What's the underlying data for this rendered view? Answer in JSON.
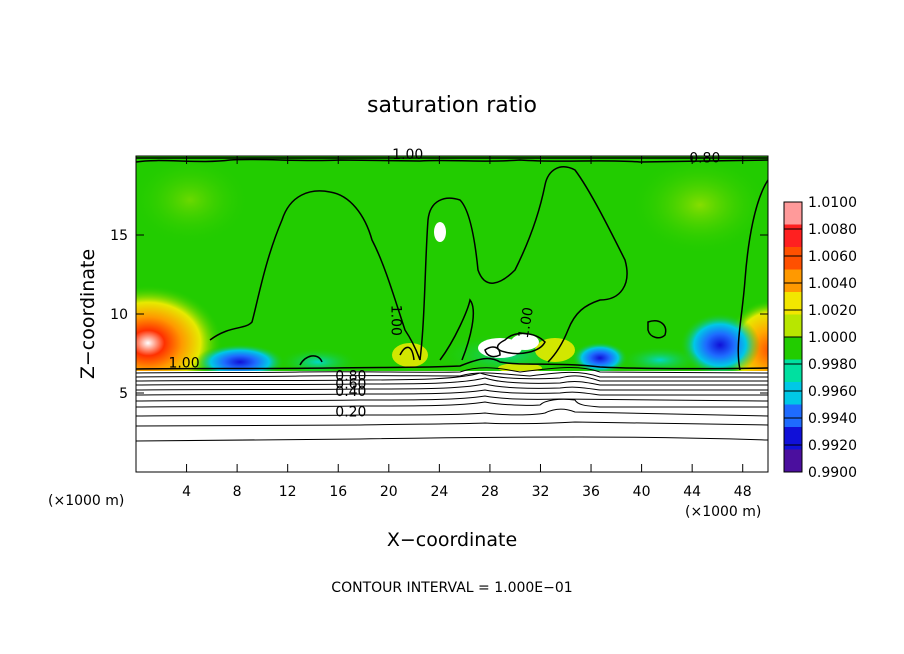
{
  "chart_data": {
    "type": "heatmap",
    "title": "saturation ratio",
    "xlabel": "X−coordinate",
    "ylabel": "Z−coordinate",
    "x_unit_left": "(×1000 m)",
    "x_unit_right": "(×1000 m)",
    "xlim": [
      0,
      50
    ],
    "ylim": [
      0,
      20
    ],
    "x_ticks": [
      4,
      8,
      12,
      16,
      20,
      24,
      28,
      32,
      36,
      40,
      44,
      48
    ],
    "y_ticks": [
      5,
      10,
      15
    ],
    "colorbar": {
      "labels": [
        "1.0100",
        "1.0080",
        "1.0060",
        "1.0040",
        "1.0020",
        "1.0000",
        "0.9980",
        "0.9960",
        "0.9940",
        "0.9920",
        "0.9900"
      ],
      "colors": [
        "#ff9a9a",
        "#ff2020",
        "#ff5000",
        "#ff9900",
        "#f2e600",
        "#b8e600",
        "#22cc00",
        "#00e0a0",
        "#00c8e6",
        "#1e6bff",
        "#1010d8",
        "#4b0f9e"
      ]
    },
    "contour_labels": [
      {
        "text": "1.00",
        "x": 21.5,
        "y": 19.8
      },
      {
        "text": "0.80",
        "x": 45.0,
        "y": 19.6
      },
      {
        "text": "1.00",
        "x": 20.2,
        "y": 9.6
      },
      {
        "text": "1.00",
        "x": 31.2,
        "y": 9.4
      },
      {
        "text": "1.00",
        "x": 3.8,
        "y": 6.6
      },
      {
        "text": "0.80",
        "x": 17.0,
        "y": 5.8
      },
      {
        "text": "0.60",
        "x": 17.0,
        "y": 5.3
      },
      {
        "text": "0.40",
        "x": 17.0,
        "y": 4.8
      },
      {
        "text": "0.20",
        "x": 17.0,
        "y": 3.5
      }
    ],
    "footer": "CONTOUR INTERVAL = 1.000E−01"
  }
}
